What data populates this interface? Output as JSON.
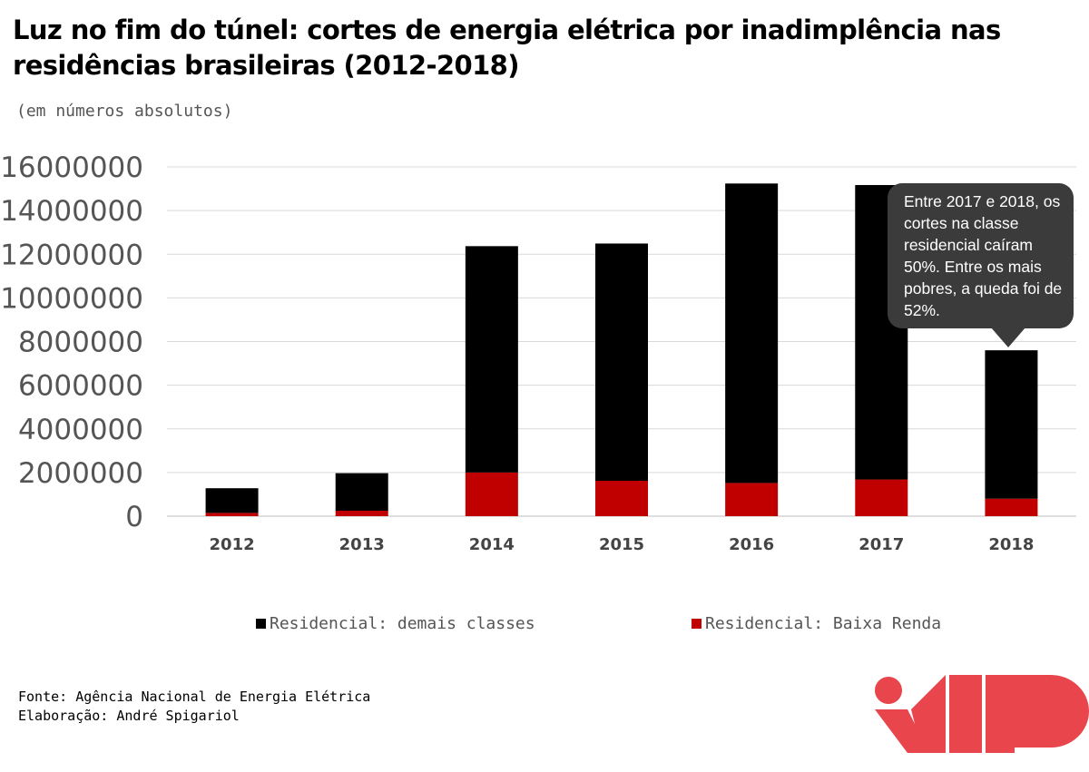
{
  "title": "Luz no fim do túnel: cortes de energia elétrica por inadimplência nas residências brasileiras (2012-2018)",
  "subtitle": "(em números absolutos)",
  "callout": "Entre 2017 e 2018, os cortes na classe residencial caíram 50%. Entre os mais pobres, a queda foi de 52%.",
  "source": {
    "line1": "Fonte: Agência Nacional de Energia Elétrica",
    "line2": "Elaboração: André Spigariol"
  },
  "logo_icon": "imp-logo",
  "chart_data": {
    "type": "bar",
    "stacked": true,
    "categories": [
      "2012",
      "2013",
      "2014",
      "2015",
      "2016",
      "2017",
      "2018"
    ],
    "series": [
      {
        "name": "Residencial: Baixa Renda",
        "color": "#c00000",
        "values": [
          150000,
          250000,
          2000000,
          1620000,
          1520000,
          1680000,
          800000
        ]
      },
      {
        "name": "Residencial: demais classes",
        "color": "#000000",
        "values": [
          1130000,
          1720000,
          10370000,
          10870000,
          13720000,
          13490000,
          6800000
        ]
      }
    ],
    "yticks": [
      "0",
      "2000000",
      "4000000",
      "6000000",
      "8000000",
      "10000000",
      "12000000",
      "14000000",
      "16000000"
    ],
    "ylim": [
      0,
      16000000
    ],
    "grid": true,
    "legend_position": "bottom"
  }
}
